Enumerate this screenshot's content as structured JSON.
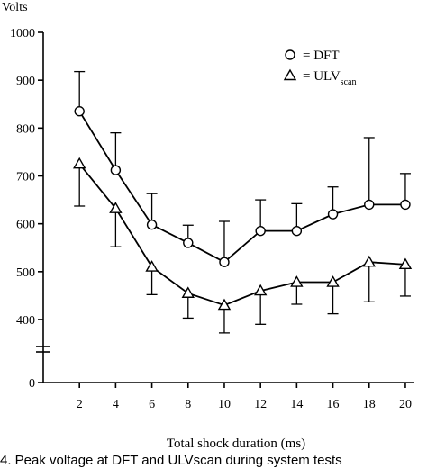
{
  "chart_data": {
    "type": "line",
    "ylabel": "Volts",
    "xlabel": "Total shock duration  (ms)",
    "x": [
      2,
      4,
      6,
      8,
      10,
      12,
      14,
      16,
      18,
      20
    ],
    "xlim": [
      0,
      20.5
    ],
    "ylim": [
      0,
      1000
    ],
    "y_axis_break": true,
    "yticks": [
      "0",
      "400",
      "500",
      "600",
      "700",
      "800",
      "900",
      "1000"
    ],
    "xticks": [
      "2",
      "4",
      "6",
      "8",
      "10",
      "12",
      "14",
      "16",
      "18",
      "20"
    ],
    "legend_position": "top-right",
    "series": [
      {
        "name": "DFT",
        "legend_prefix": "= DFT",
        "legend_sub": "",
        "marker": "circle",
        "values": [
          835,
          712,
          598,
          560,
          520,
          585,
          585,
          620,
          640,
          640
        ],
        "err_high": [
          918,
          790,
          663,
          597,
          605,
          650,
          642,
          677,
          780,
          705
        ],
        "err_low": []
      },
      {
        "name": "ULVscan",
        "legend_prefix": "= ULV",
        "legend_sub": "scan",
        "marker": "triangle",
        "values": [
          725,
          632,
          510,
          455,
          430,
          460,
          478,
          478,
          520,
          515
        ],
        "err_high": [],
        "err_low": [
          637,
          552,
          452,
          403,
          372,
          390,
          432,
          412,
          437,
          449
        ]
      }
    ]
  },
  "caption": "4. Peak voltage at DFT and ULVscan during system tests"
}
